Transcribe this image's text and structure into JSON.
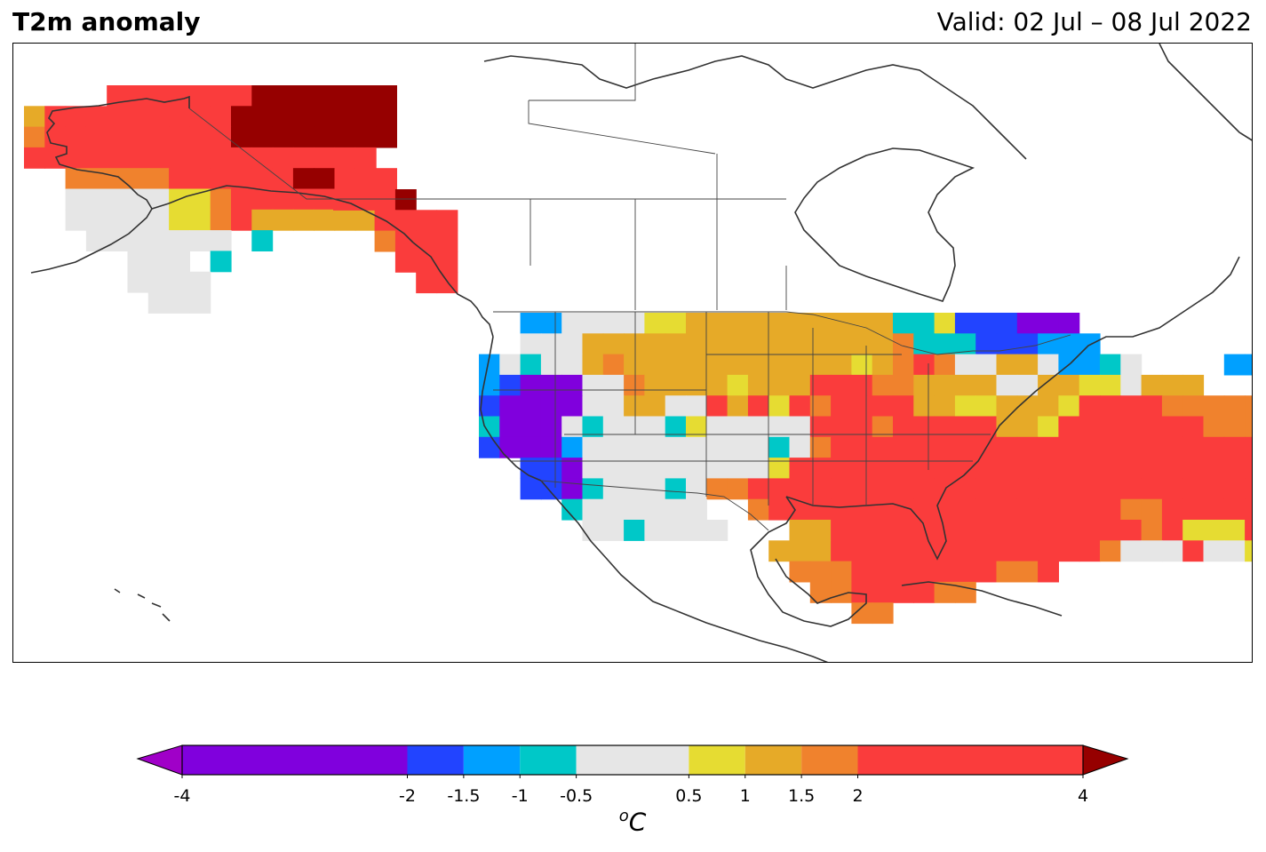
{
  "header": {
    "title": "T2m anomaly",
    "valid": "Valid: 02 Jul – 08 Jul 2022"
  },
  "colorbar": {
    "unit_superscript": "o",
    "unit_main": "C",
    "ticks": [
      {
        "value": -4,
        "label": "-4"
      },
      {
        "value": -2,
        "label": "-2"
      },
      {
        "value": -1.5,
        "label": "-1.5"
      },
      {
        "value": -1,
        "label": "-1"
      },
      {
        "value": -0.5,
        "label": "-0.5"
      },
      {
        "value": 0.5,
        "label": "0.5"
      },
      {
        "value": 1,
        "label": "1"
      },
      {
        "value": 1.5,
        "label": "1.5"
      },
      {
        "value": 2,
        "label": "2"
      },
      {
        "value": 4,
        "label": "4"
      }
    ],
    "bins": [
      {
        "from": -4,
        "to": -2,
        "color": "#8000dd"
      },
      {
        "from": -2,
        "to": -1.5,
        "color": "#2244ff"
      },
      {
        "from": -1.5,
        "to": -1,
        "color": "#00a0ff"
      },
      {
        "from": -1,
        "to": -0.5,
        "color": "#00c8c8"
      },
      {
        "from": -0.5,
        "to": 0.5,
        "color": "#e6e6e6"
      },
      {
        "from": 0.5,
        "to": 1,
        "color": "#e6dc32"
      },
      {
        "from": 1,
        "to": 1.5,
        "color": "#e6aa28"
      },
      {
        "from": 1.5,
        "to": 2,
        "color": "#f0822d"
      },
      {
        "from": 2,
        "to": 4,
        "color": "#fa3c3c"
      }
    ],
    "extend_low_color": "#a000c8",
    "extend_high_color": "#960000"
  },
  "legend_colors": {
    "coastline": "#333333",
    "grid_border": "#000000"
  }
}
